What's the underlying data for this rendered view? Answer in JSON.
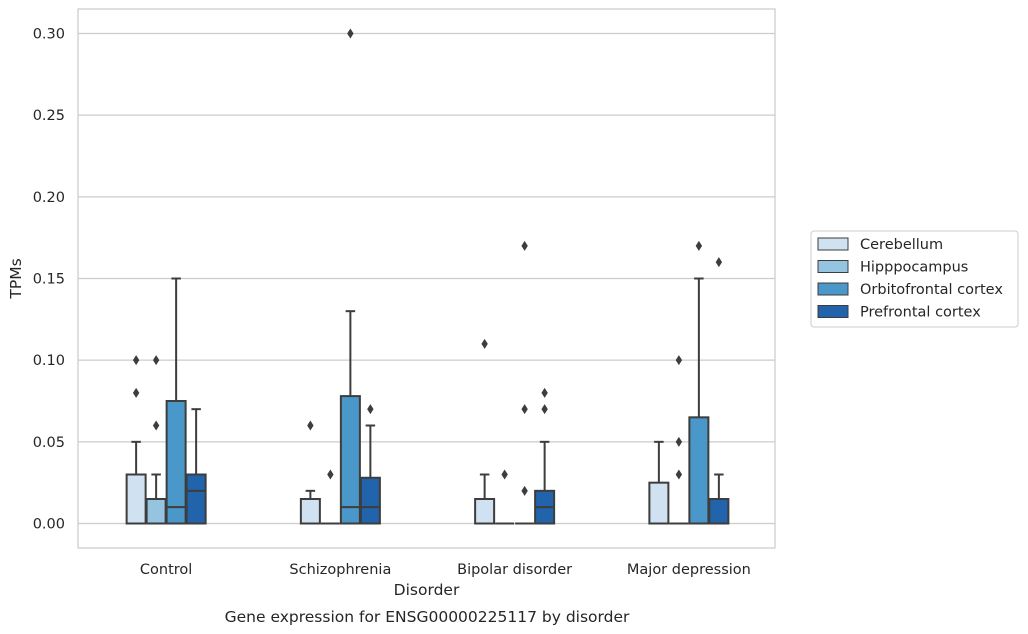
{
  "chart_data": {
    "type": "box",
    "title": "",
    "caption": "Gene expression for ENSG00000225117 by disorder",
    "xlabel": "Disorder",
    "ylabel": "TPMs",
    "ylim": [
      -0.015,
      0.315
    ],
    "yticks": [
      "0.00",
      "0.05",
      "0.10",
      "0.15",
      "0.20",
      "0.25",
      "0.30"
    ],
    "grid": "horizontal",
    "legend_position": "right",
    "categories": [
      "Control",
      "Schizophrenia",
      "Bipolar disorder",
      "Major depression"
    ],
    "series": [
      {
        "name": "Cerebellum",
        "color": "#d0e1f2",
        "boxes": [
          {
            "q1": 0.0,
            "median": 0.0,
            "q3": 0.03,
            "whisker_low": 0.0,
            "whisker_high": 0.05,
            "outliers": [
              0.08,
              0.1
            ]
          },
          {
            "q1": 0.0,
            "median": 0.0,
            "q3": 0.015,
            "whisker_low": 0.0,
            "whisker_high": 0.02,
            "outliers": [
              0.06
            ]
          },
          {
            "q1": 0.0,
            "median": 0.0,
            "q3": 0.015,
            "whisker_low": 0.0,
            "whisker_high": 0.03,
            "outliers": [
              0.11
            ]
          },
          {
            "q1": 0.0,
            "median": 0.0,
            "q3": 0.025,
            "whisker_low": 0.0,
            "whisker_high": 0.05,
            "outliers": []
          }
        ]
      },
      {
        "name": "Hipppocampus",
        "color": "#94c4df",
        "boxes": [
          {
            "q1": 0.0,
            "median": 0.0,
            "q3": 0.015,
            "whisker_low": 0.0,
            "whisker_high": 0.03,
            "outliers": [
              0.06,
              0.1
            ]
          },
          {
            "q1": 0.0,
            "median": 0.0,
            "q3": 0.0,
            "whisker_low": 0.0,
            "whisker_high": 0.0,
            "outliers": [
              0.03
            ]
          },
          {
            "q1": 0.0,
            "median": 0.0,
            "q3": 0.0,
            "whisker_low": 0.0,
            "whisker_high": 0.0,
            "outliers": [
              0.03
            ]
          },
          {
            "q1": 0.0,
            "median": 0.0,
            "q3": 0.0,
            "whisker_low": 0.0,
            "whisker_high": 0.0,
            "outliers": [
              0.03,
              0.05,
              0.1
            ]
          }
        ]
      },
      {
        "name": "Orbitofrontal cortex",
        "color": "#4a98c9",
        "boxes": [
          {
            "q1": 0.0,
            "median": 0.01,
            "q3": 0.075,
            "whisker_low": 0.0,
            "whisker_high": 0.15,
            "outliers": []
          },
          {
            "q1": 0.0,
            "median": 0.01,
            "q3": 0.078,
            "whisker_low": 0.0,
            "whisker_high": 0.13,
            "outliers": [
              0.3
            ]
          },
          {
            "q1": 0.0,
            "median": 0.0,
            "q3": 0.0,
            "whisker_low": 0.0,
            "whisker_high": 0.0,
            "outliers": [
              0.02,
              0.07,
              0.17
            ]
          },
          {
            "q1": 0.0,
            "median": 0.0,
            "q3": 0.065,
            "whisker_low": 0.0,
            "whisker_high": 0.15,
            "outliers": [
              0.17
            ]
          }
        ]
      },
      {
        "name": "Prefrontal cortex",
        "color": "#2164ab",
        "boxes": [
          {
            "q1": 0.0,
            "median": 0.02,
            "q3": 0.03,
            "whisker_low": 0.0,
            "whisker_high": 0.07,
            "outliers": []
          },
          {
            "q1": 0.0,
            "median": 0.01,
            "q3": 0.028,
            "whisker_low": 0.0,
            "whisker_high": 0.06,
            "outliers": [
              0.07
            ]
          },
          {
            "q1": 0.0,
            "median": 0.01,
            "q3": 0.02,
            "whisker_low": 0.0,
            "whisker_high": 0.05,
            "outliers": [
              0.07,
              0.08
            ]
          },
          {
            "q1": 0.0,
            "median": 0.0,
            "q3": 0.015,
            "whisker_low": 0.0,
            "whisker_high": 0.03,
            "outliers": [
              0.16
            ]
          }
        ]
      }
    ]
  }
}
